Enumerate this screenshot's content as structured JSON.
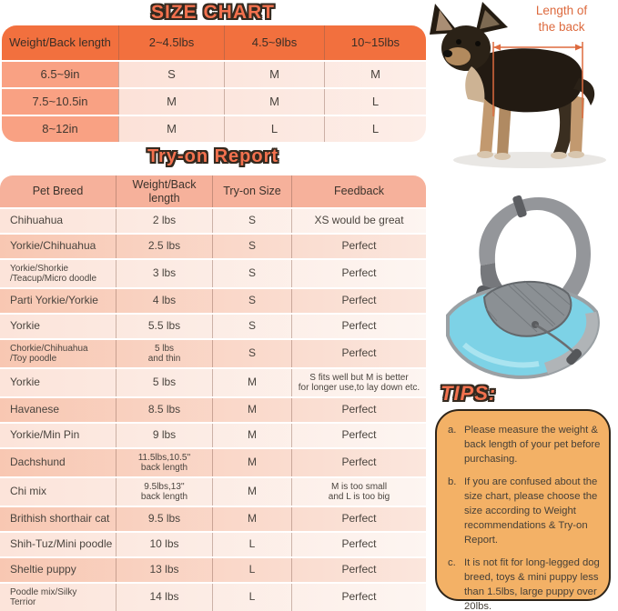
{
  "size_chart": {
    "title": "SIZE CHART",
    "columns": [
      "Weight/Back length",
      "2~4.5lbs",
      "4.5~9lbs",
      "10~15lbs"
    ],
    "rows": [
      [
        "6.5~9in",
        "S",
        "M",
        "M"
      ],
      [
        "7.5~10.5in",
        "M",
        "M",
        "L"
      ],
      [
        "8~12in",
        "M",
        "L",
        "L"
      ]
    ]
  },
  "tryon_report": {
    "title": "Try-on Report",
    "columns": [
      "Pet Breed",
      "Weight/Back length",
      "Try-on Size",
      "Feedback"
    ],
    "rows": [
      [
        "Chihuahua",
        "2 lbs",
        "S",
        "XS would be great"
      ],
      [
        "Yorkie/Chihuahua",
        "2.5 lbs",
        "S",
        "Perfect"
      ],
      [
        "Yorkie/Shorkie\n/Teacup/Micro doodle",
        "3 lbs",
        "S",
        "Perfect"
      ],
      [
        "Parti Yorkie/Yorkie",
        "4 lbs",
        "S",
        "Perfect"
      ],
      [
        "Yorkie",
        "5.5 lbs",
        "S",
        "Perfect"
      ],
      [
        "Chorkie/Chihuahua\n/Toy poodle",
        "5 lbs\nand thin",
        "S",
        "Perfect"
      ],
      [
        "Yorkie",
        "5 lbs",
        "M",
        "S fits well but M is better\nfor longer use,to lay down etc."
      ],
      [
        "Havanese",
        "8.5 lbs",
        "M",
        "Perfect"
      ],
      [
        "Yorkie/Min Pin",
        "9 lbs",
        "M",
        "Perfect"
      ],
      [
        "Dachshund",
        "11.5lbs,10.5''\nback length",
        "M",
        "Perfect"
      ],
      [
        "Chi mix",
        "9.5lbs,13''\nback length",
        "M",
        "M is too small\nand L is too big"
      ],
      [
        "Brithish shorthair cat",
        "9.5 lbs",
        "M",
        "Perfect"
      ],
      [
        "Shih-Tuz/Mini poodle",
        "10 lbs",
        "L",
        "Perfect"
      ],
      [
        "Sheltie puppy",
        "13 lbs",
        "L",
        "Perfect"
      ],
      [
        "Poodle mix/Silky\nTerrior",
        "14 lbs",
        "L",
        "Perfect"
      ]
    ]
  },
  "dog_figure": {
    "annotation": "Length of\nthe back"
  },
  "tips": {
    "title": "TIPS:",
    "items": [
      {
        "marker": "a.",
        "text": "Please measure the weight & back length of your pet before purchasing."
      },
      {
        "marker": "b.",
        "text": "If you are confused about the size chart, please choose the size according to Weight recommendations & Try-on Report."
      },
      {
        "marker": "c.",
        "text": "It is not fit for long-legged dog breed, toys & mini puppy less than 1.5lbs, large puppy over 20lbs."
      }
    ]
  },
  "colors": {
    "header_orange": "#f2703e",
    "label_peach": "#f9a183",
    "cell_pink": "#fbddd2",
    "tryon_header": "#f6b19b",
    "row_dark": "#f8c7b2",
    "row_light": "#fce4da",
    "title_coral": "#f2714e",
    "outline_dark": "#33291f",
    "tips_box": "#f3b166",
    "annotation_orange": "#dd6a3e",
    "bag_blue": "#7dd2e6",
    "strap_gray": "#94969a"
  }
}
